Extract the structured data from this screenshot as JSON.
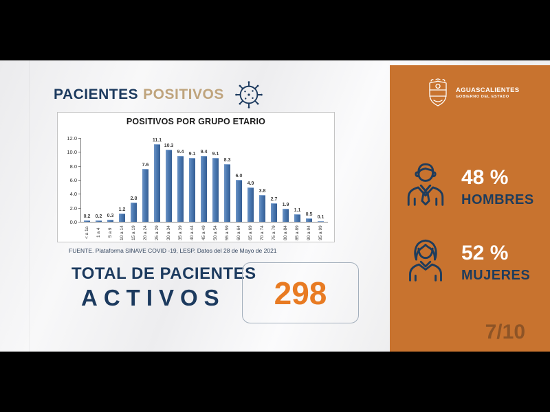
{
  "header": {
    "title_primary": "PACIENTES",
    "title_secondary": "POSITIVOS"
  },
  "chart_data": {
    "type": "bar",
    "title": "POSITIVOS POR GRUPO ETARIO",
    "categories": [
      "< a 1a",
      "1 a 4",
      "5 a 9",
      "10 a 14",
      "15 a 19",
      "20 a 24",
      "25 a 29",
      "30 a 34",
      "35 a 39",
      "40 a 44",
      "45 a 49",
      "50 a 54",
      "55 a 59",
      "60 a 64",
      "65 a 69",
      "70 a 74",
      "75 a 79",
      "80 a 84",
      "85 a 89",
      "90 a 94",
      "95 a 99"
    ],
    "values": [
      0.2,
      0.2,
      0.3,
      1.2,
      2.8,
      7.6,
      11.1,
      10.3,
      9.4,
      9.1,
      9.4,
      9.1,
      8.3,
      6.0,
      4.9,
      3.8,
      2.7,
      1.9,
      1.1,
      0.5,
      0.1
    ],
    "xlabel": "",
    "ylabel": "",
    "ylim": [
      0,
      12
    ],
    "yticks": [
      0.0,
      2.0,
      4.0,
      6.0,
      8.0,
      10.0,
      12.0
    ],
    "grid": false,
    "legend_position": "none",
    "bar_color": "#4a79b2"
  },
  "source_note": "FUENTE. Plataforma SINAVE COVID -19, LESP. Datos del 28 de Mayo de 2021",
  "total": {
    "label_line1": "TOTAL DE PACIENTES",
    "label_line2": "ACTIVOS",
    "value": "298"
  },
  "brand": {
    "name": "AGUASCALIENTES",
    "subtitle": "GOBIERNO DEL ESTADO"
  },
  "gender_stats": {
    "men": {
      "percent": "48 %",
      "label": "HOMBRES"
    },
    "women": {
      "percent": "52 %",
      "label": "MUJERES"
    }
  },
  "page_indicator": "7/10",
  "colors": {
    "panel_orange": "#c8732f",
    "navy": "#1c3a5e",
    "total_value_orange": "#e87b23",
    "bar_blue": "#4a79b2",
    "title_secondary_tan": "#bfa47d"
  }
}
